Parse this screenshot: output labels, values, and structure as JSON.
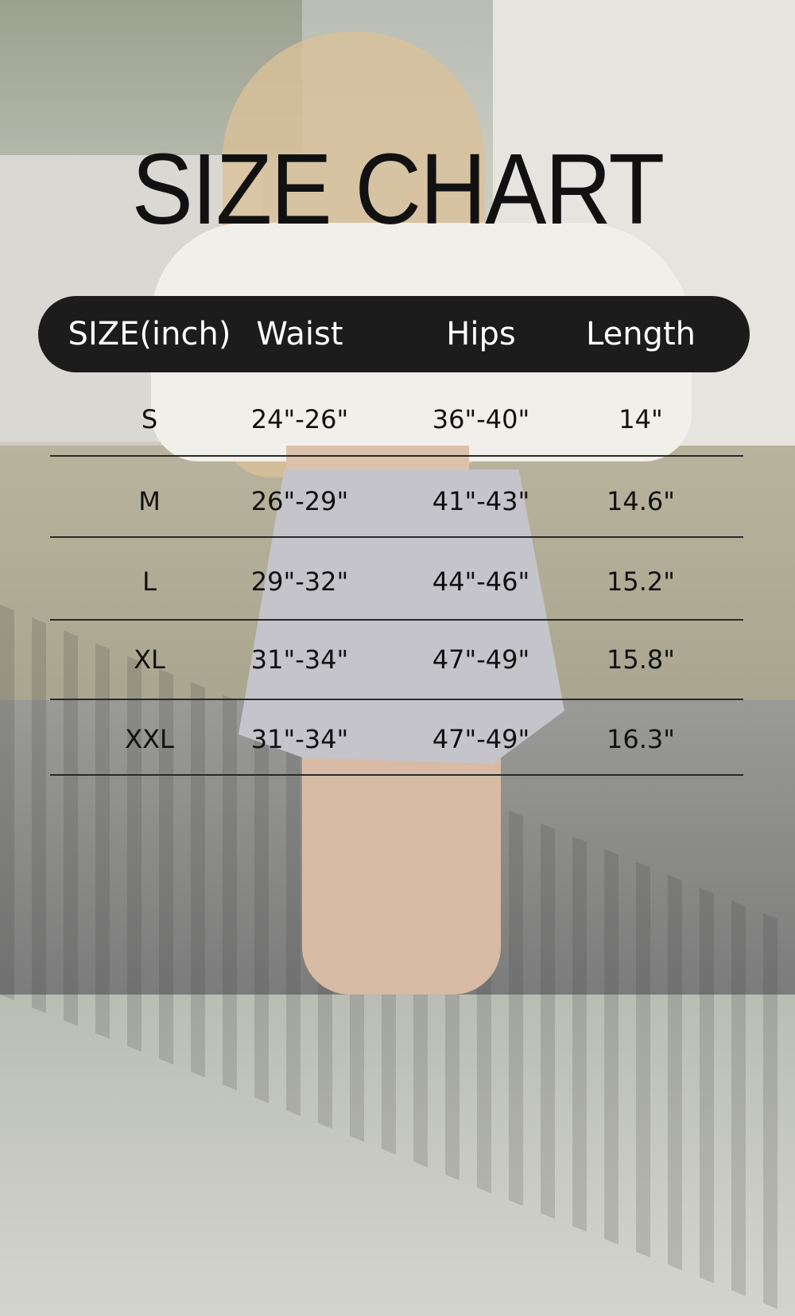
{
  "title": "SIZE CHART",
  "headers": [
    "SIZE(inch)",
    "Waist",
    "Hips",
    "Length"
  ],
  "rows": [
    [
      "S",
      "24\"-26\"",
      "36\"-40\"",
      "14\""
    ],
    [
      "M",
      "26\"-29\"",
      "41\"-43\"",
      "14.6\""
    ],
    [
      "L",
      "29\"-32\"",
      "44\"-46\"",
      "15.2\""
    ],
    [
      "XL",
      "31\"-34\"",
      "47\"-49\"",
      "15.8\""
    ],
    [
      "XXL",
      "31\"-34\"",
      "47\"-49\"",
      "16.3\""
    ]
  ],
  "colors": {
    "header_bg": "#1c1c1c",
    "header_text": "#ffffff",
    "text": "#111111"
  }
}
